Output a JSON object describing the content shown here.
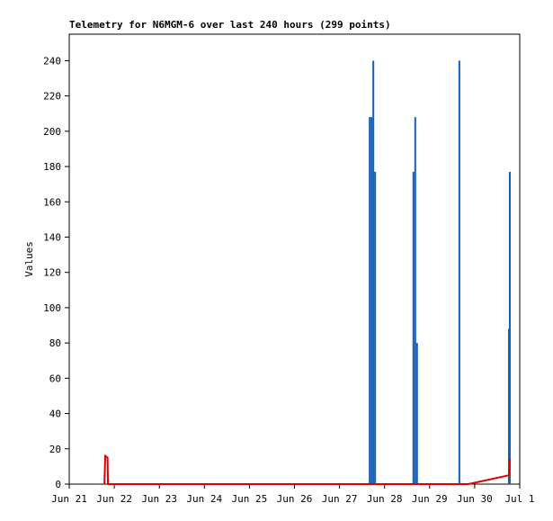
{
  "chart_data": {
    "type": "telemetry",
    "title": "Telemetry for N6MGM-6 over last 240 hours (299 points)",
    "ylabel": "Values",
    "xlim": [
      0,
      10
    ],
    "ylim": [
      0,
      255
    ],
    "xticks": [
      {
        "value": 0,
        "label": "Jun 21"
      },
      {
        "value": 1,
        "label": "Jun 22"
      },
      {
        "value": 2,
        "label": "Jun 23"
      },
      {
        "value": 3,
        "label": "Jun 24"
      },
      {
        "value": 4,
        "label": "Jun 25"
      },
      {
        "value": 5,
        "label": "Jun 26"
      },
      {
        "value": 6,
        "label": "Jun 27"
      },
      {
        "value": 7,
        "label": "Jun 28"
      },
      {
        "value": 8,
        "label": "Jun 29"
      },
      {
        "value": 9,
        "label": "Jun 30"
      },
      {
        "value": 10,
        "label": "Jul 1"
      }
    ],
    "yticks": [
      0,
      20,
      40,
      60,
      80,
      100,
      120,
      140,
      160,
      180,
      200,
      220,
      240
    ],
    "series": [
      {
        "style": "impulse",
        "color": "#1060c0",
        "x": [
          6.67,
          6.71,
          6.75,
          6.79,
          7.64,
          7.68,
          7.72,
          8.66,
          9.76,
          9.78
        ],
        "values": [
          208,
          208,
          240,
          177,
          177,
          208,
          80,
          240,
          88,
          177
        ]
      },
      {
        "style": "line",
        "color": "#e00000",
        "x": [
          0.78,
          0.8,
          0.85,
          0.86,
          8.86,
          9.76,
          9.78
        ],
        "values": [
          0,
          16,
          15,
          0,
          0,
          5,
          14
        ]
      }
    ]
  }
}
